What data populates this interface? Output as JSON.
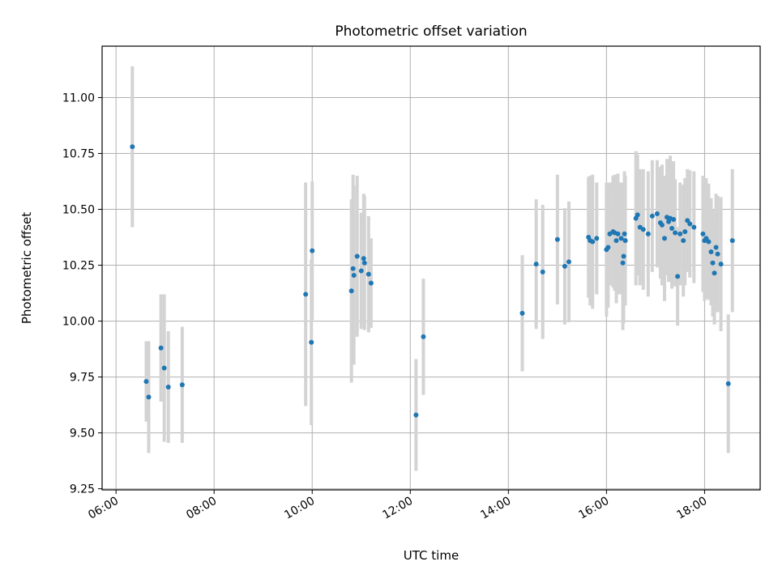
{
  "chart_data": {
    "type": "scatter",
    "title": "Photometric offset variation",
    "xlabel": "UTC time",
    "ylabel": "Photometric offset",
    "x_unit": "UTC time (HH:MM)",
    "xlim": [
      "05:43",
      "19:08"
    ],
    "ylim": [
      9.245,
      11.23
    ],
    "x_ticks": [
      "06:00",
      "08:00",
      "10:00",
      "12:00",
      "14:00",
      "16:00",
      "18:00"
    ],
    "y_ticks": [
      9.25,
      9.5,
      9.75,
      10.0,
      10.25,
      10.5,
      10.75,
      11.0
    ],
    "y_tick_labels": [
      "9.25",
      "9.50",
      "9.75",
      "10.00",
      "10.25",
      "10.50",
      "10.75",
      "11.00"
    ],
    "grid": true,
    "colors": {
      "point": "#1f77b4",
      "errorbar": "#d3d3d3",
      "grid": "#b0b0b0"
    },
    "series": [
      {
        "x": [
          "06:20",
          "06:37",
          "06:40",
          "06:55",
          "06:59",
          "07:04",
          "07:21",
          "09:52",
          "09:59",
          "10:00",
          "10:48",
          "10:50",
          "10:51",
          "10:55",
          "11:00",
          "11:03",
          "11:04",
          "11:09",
          "11:12",
          "12:07",
          "12:16",
          "14:17",
          "14:34",
          "14:42",
          "15:00",
          "15:09",
          "15:14",
          "15:38",
          "15:40",
          "15:43",
          "15:48",
          "16:00",
          "16:02",
          "16:04",
          "16:08",
          "16:10",
          "16:12",
          "16:14",
          "16:18",
          "16:20",
          "16:21",
          "16:22",
          "16:23",
          "16:36",
          "16:38",
          "16:41",
          "16:45",
          "16:51",
          "16:56",
          "17:02",
          "17:06",
          "17:08",
          "17:11",
          "17:14",
          "17:16",
          "17:18",
          "17:20",
          "17:22",
          "17:24",
          "17:27",
          "17:30",
          "17:34",
          "17:36",
          "17:39",
          "17:42",
          "17:47",
          "17:58",
          "18:00",
          "18:02",
          "18:05",
          "18:08",
          "18:10",
          "18:12",
          "18:14",
          "18:16",
          "18:20",
          "18:29",
          "18:34"
        ],
        "y": [
          10.78,
          9.73,
          9.66,
          9.88,
          9.79,
          9.705,
          9.715,
          10.12,
          9.905,
          10.315,
          10.135,
          10.235,
          10.205,
          10.29,
          10.225,
          10.28,
          10.26,
          10.21,
          10.17,
          9.58,
          9.93,
          10.035,
          10.255,
          10.22,
          10.365,
          10.245,
          10.265,
          10.375,
          10.36,
          10.355,
          10.37,
          10.32,
          10.33,
          10.39,
          10.4,
          10.395,
          10.36,
          10.39,
          10.37,
          10.26,
          10.29,
          10.39,
          10.36,
          10.46,
          10.475,
          10.42,
          10.41,
          10.39,
          10.47,
          10.48,
          10.44,
          10.43,
          10.37,
          10.465,
          10.445,
          10.46,
          10.415,
          10.455,
          10.395,
          10.2,
          10.39,
          10.36,
          10.4,
          10.45,
          10.435,
          10.42,
          10.39,
          10.36,
          10.37,
          10.355,
          10.31,
          10.26,
          10.215,
          10.33,
          10.3,
          10.255,
          9.72,
          10.36
        ],
        "yerr": [
          0.36,
          0.18,
          0.25,
          0.24,
          0.33,
          0.25,
          0.26,
          0.5,
          0.37,
          0.31,
          0.41,
          0.42,
          0.4,
          0.36,
          0.26,
          0.29,
          0.3,
          0.26,
          0.2,
          0.25,
          0.26,
          0.26,
          0.29,
          0.3,
          0.29,
          0.26,
          0.27,
          0.27,
          0.29,
          0.3,
          0.25,
          0.3,
          0.27,
          0.23,
          0.25,
          0.26,
          0.28,
          0.27,
          0.25,
          0.3,
          0.3,
          0.28,
          0.29,
          0.3,
          0.27,
          0.26,
          0.27,
          0.28,
          0.25,
          0.24,
          0.25,
          0.27,
          0.28,
          0.26,
          0.27,
          0.28,
          0.27,
          0.26,
          0.24,
          0.22,
          0.23,
          0.25,
          0.24,
          0.23,
          0.24,
          0.25,
          0.26,
          0.27,
          0.27,
          0.26,
          0.24,
          0.24,
          0.23,
          0.24,
          0.26,
          0.3,
          0.31,
          0.32
        ]
      }
    ]
  }
}
